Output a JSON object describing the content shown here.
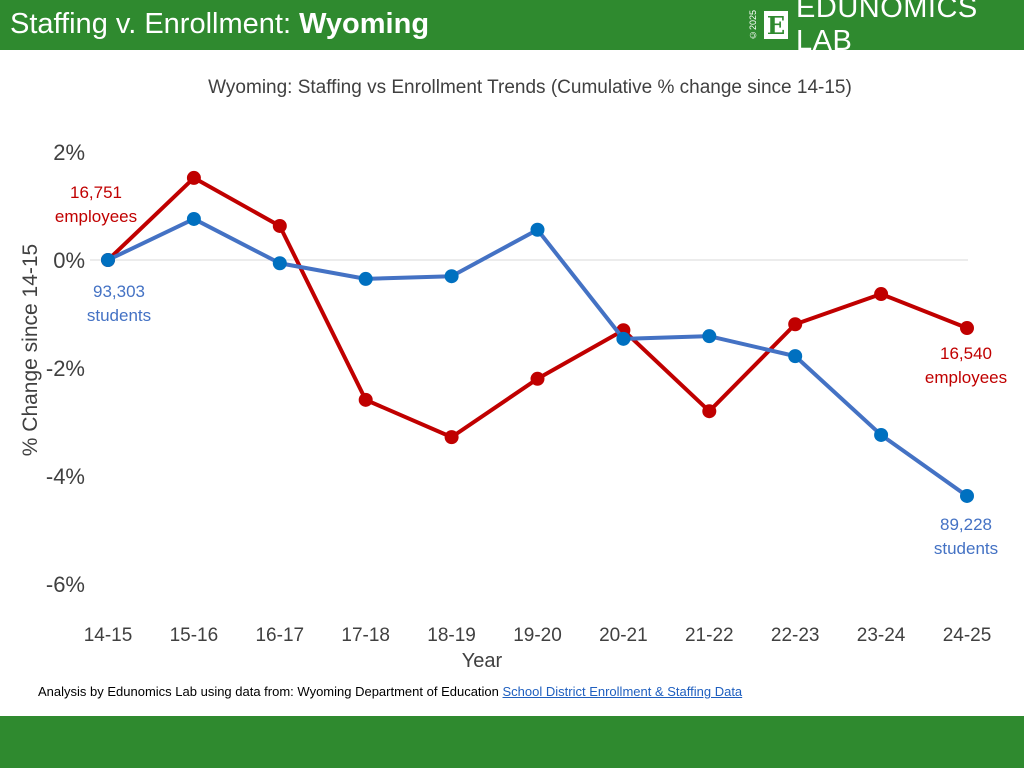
{
  "header": {
    "title_prefix": "Staffing v. Enrollment: ",
    "title_state": "Wyoming",
    "logo_copyright": "©2025",
    "logo_mark": "E",
    "logo_text": "EDUNOMICS LAB"
  },
  "footer": {
    "text": "Analysis by Edunomics Lab using data from: Wyoming Department of Education ",
    "link": "School District Enrollment & Staffing Data"
  },
  "colors": {
    "brand_green": "#2f8a2f",
    "staff": "#c00000",
    "students_line": "#4472c4",
    "students_marker": "#0070c0"
  },
  "chart_data": {
    "type": "line",
    "title": "Wyoming: Staffing vs Enrollment Trends (Cumulative % change since 14-15)",
    "xlabel": "Year",
    "ylabel": "% Change since 14-15",
    "ylim": [
      -6,
      2
    ],
    "yticks": [
      2,
      0,
      -2,
      -4,
      -6
    ],
    "ytick_labels": [
      "2%",
      "0%",
      "-2%",
      "-4%",
      "-6%"
    ],
    "categories": [
      "14-15",
      "15-16",
      "16-17",
      "17-18",
      "18-19",
      "19-20",
      "20-21",
      "21-22",
      "22-23",
      "23-24",
      "24-25"
    ],
    "series": [
      {
        "key": "staff",
        "values": [
          0,
          1.52,
          0.63,
          -2.59,
          -3.28,
          -2.2,
          -1.3,
          -2.8,
          -1.19,
          -0.63,
          -1.26
        ]
      },
      {
        "key": "students",
        "values": [
          0,
          0.76,
          -0.06,
          -0.35,
          -0.3,
          0.56,
          -1.46,
          -1.41,
          -1.78,
          -3.24,
          -4.37
        ]
      }
    ],
    "annotations": {
      "staff_start": [
        "16,751",
        "employees"
      ],
      "staff_end": [
        "16,540",
        "employees"
      ],
      "students_start": [
        "93,303",
        "students"
      ],
      "students_end": [
        "89,228",
        "students"
      ]
    },
    "grid": false
  }
}
